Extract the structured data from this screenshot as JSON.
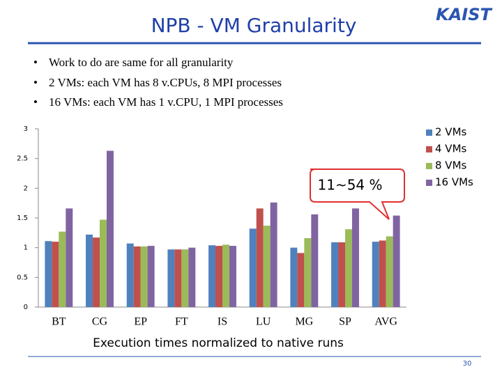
{
  "header": {
    "title": "NPB - VM Granularity",
    "logo": "KAIST"
  },
  "bullets": [
    "Work to do are same for all granularity",
    "2 VMs: each VM has 8 v.CPUs, 8 MPI processes",
    "16 VMs: each VM has 1 v.CPU, 1 MPI processes"
  ],
  "chart_data": {
    "type": "bar",
    "categories": [
      "BT",
      "CG",
      "EP",
      "FT",
      "IS",
      "LU",
      "MG",
      "SP",
      "AVG"
    ],
    "series": [
      {
        "name": "2 VMs",
        "color": "#4f81bd",
        "values": [
          1.11,
          1.22,
          1.07,
          0.97,
          1.04,
          1.32,
          1.0,
          1.09,
          1.1
        ]
      },
      {
        "name": "4 VMs",
        "color": "#c0504d",
        "values": [
          1.1,
          1.17,
          1.02,
          0.97,
          1.03,
          1.66,
          0.91,
          1.09,
          1.12
        ]
      },
      {
        "name": "8 VMs",
        "color": "#9bbb59",
        "values": [
          1.27,
          1.47,
          1.02,
          0.97,
          1.05,
          1.37,
          1.16,
          1.31,
          1.19
        ]
      },
      {
        "name": "16 VMs",
        "color": "#8064a2",
        "values": [
          1.66,
          2.63,
          1.03,
          1.0,
          1.03,
          1.76,
          1.56,
          1.66,
          1.54
        ]
      }
    ],
    "ylim": [
      0,
      3
    ],
    "yticks": [
      0,
      0.5,
      1,
      1.5,
      2,
      2.5,
      3
    ],
    "annotation": "11~54 %",
    "xlabel": "Execution times normalized to native runs",
    "legend": "right"
  },
  "footer": {
    "page": "30"
  }
}
